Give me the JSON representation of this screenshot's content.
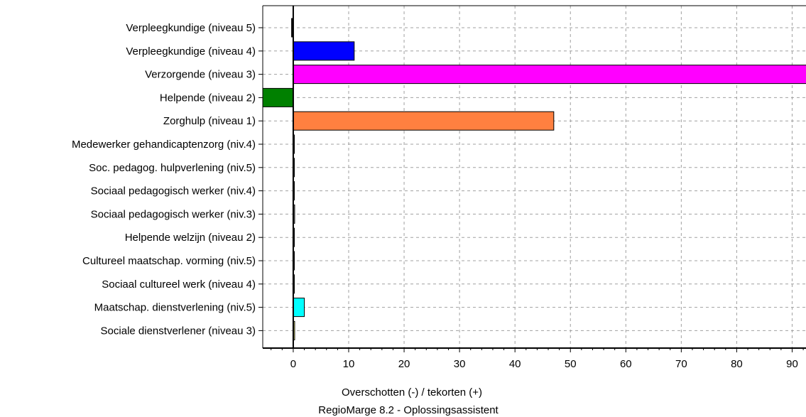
{
  "chart_data": {
    "type": "bar",
    "orientation": "horizontal",
    "categories": [
      "Verpleegkundige (niveau 5)",
      "Verpleegkundige (niveau 4)",
      "Verzorgende (niveau 3)",
      "Helpende (niveau 2)",
      "Zorghulp (niveau 1)",
      "Medewerker gehandicaptenzorg (niv.4)",
      "Soc. pedagog. hulpverlening (niv.5)",
      "Sociaal pedagogisch werker (niv.4)",
      "Sociaal pedagogisch werker (niv.3)",
      "Helpende welzijn (niveau 2)",
      "Cultureel maatschap. vorming (niv.5)",
      "Sociaal cultureel werk (niveau 4)",
      "Maatschap. dienstverlening (niv.5)",
      "Sociale dienstverlener (niveau 3)"
    ],
    "values": [
      -0.3,
      11,
      95,
      -5.5,
      47,
      0.2,
      0.2,
      0.2,
      0,
      0.2,
      0.2,
      0.2,
      2,
      0
    ],
    "colors": [
      "#000000",
      "#0000ff",
      "#ff00ff",
      "#008000",
      "#ff8040",
      "#800000",
      "#00c0c0",
      "#c0c000",
      "#808080",
      "#000080",
      "#800080",
      "#00ff00",
      "#00ffff",
      "#ffff80"
    ],
    "xlim": [
      -5.5,
      92.5
    ],
    "xticks": [
      0,
      10,
      20,
      30,
      40,
      50,
      60,
      70,
      80,
      90
    ],
    "xlabel": "Overschotten (-) / tekorten (+)",
    "subtitle": "RegioMarge 8.2 - Oplossingsassistent",
    "grid": true
  }
}
